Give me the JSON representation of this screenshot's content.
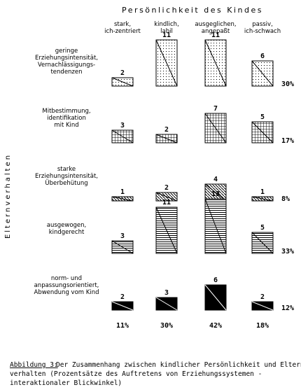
{
  "chart_data": {
    "type": "matrix-bar",
    "title": "Persönlichkeit des Kindes",
    "ylabel": "Elternverhalten",
    "categories": [
      [
        "stark,",
        "ich-zentriert"
      ],
      [
        "kindlich,",
        "labil"
      ],
      [
        "ausgeglichen,",
        "angepaßt"
      ],
      [
        "passiv,",
        "ich-schwach"
      ]
    ],
    "series": [
      {
        "name": [
          "geringe",
          "Erziehungsintensität,",
          "Vernachlässigungs-",
          "tendenzen"
        ],
        "pattern": "dots",
        "values": [
          2,
          11,
          11,
          6
        ]
      },
      {
        "name": [
          "Mitbestimmung,",
          "identifikation",
          "mit Kind"
        ],
        "pattern": "grid",
        "values": [
          3,
          2,
          7,
          5
        ]
      },
      {
        "name": [
          "starke",
          "Erziehungsintensität,",
          "Überbehütung"
        ],
        "pattern": "diag",
        "values": [
          1,
          2,
          4,
          1
        ]
      },
      {
        "name": [
          "ausgewogen,",
          "kindgerecht"
        ],
        "pattern": "hlines",
        "values": [
          3,
          11,
          13,
          5
        ]
      },
      {
        "name": [
          "norm- und",
          "anpassungsorientiert,",
          "Abwendung vom Kind"
        ],
        "pattern": "solid",
        "values": [
          2,
          3,
          6,
          2
        ]
      }
    ],
    "row_totals": {
      "values": [
        30,
        17,
        8,
        33,
        12
      ],
      "value_labels": [
        "30%",
        "17%",
        "8%",
        "33%",
        "12%"
      ]
    },
    "column_totals": {
      "values": [
        11,
        30,
        42,
        18
      ],
      "value_labels": [
        "11%",
        "30%",
        "42%",
        "18%"
      ]
    },
    "caption": {
      "label": "Abbildung 3:",
      "lines": [
        "Der Zusammenhang zwischen kindlicher Persönlichkeit und Eltern-",
        "verhalten (Prozentsätze des Auftretens von Erziehungssystemen -",
        "interaktionaler Blickwinkel)"
      ]
    }
  }
}
